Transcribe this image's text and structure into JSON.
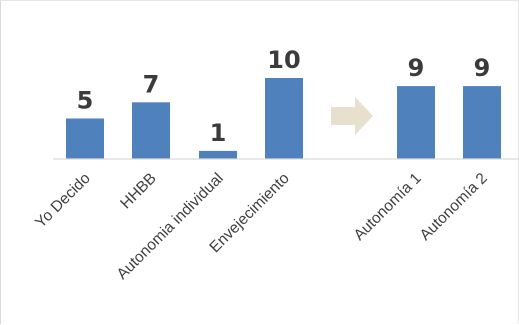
{
  "chart_data": {
    "type": "bar",
    "categories": [
      "Yo Decido",
      "HHBB",
      "Autonomia individual",
      "Envejecimiento",
      "Autonomía 1",
      "Autonomía 2"
    ],
    "values": [
      5,
      7,
      1,
      10,
      9,
      9
    ],
    "title": "",
    "xlabel": "",
    "ylabel": "",
    "ylim": [
      0,
      10
    ],
    "grid": false,
    "legend": "none",
    "annotations": [
      "arrow between Envejecimiento and Autonomía 1"
    ],
    "colors": {
      "bar": "#4f81bd",
      "label": "#3b3b3b",
      "tick": "#404040",
      "axis": "#d9d9d9",
      "arrow": "#e6e0cc"
    }
  }
}
